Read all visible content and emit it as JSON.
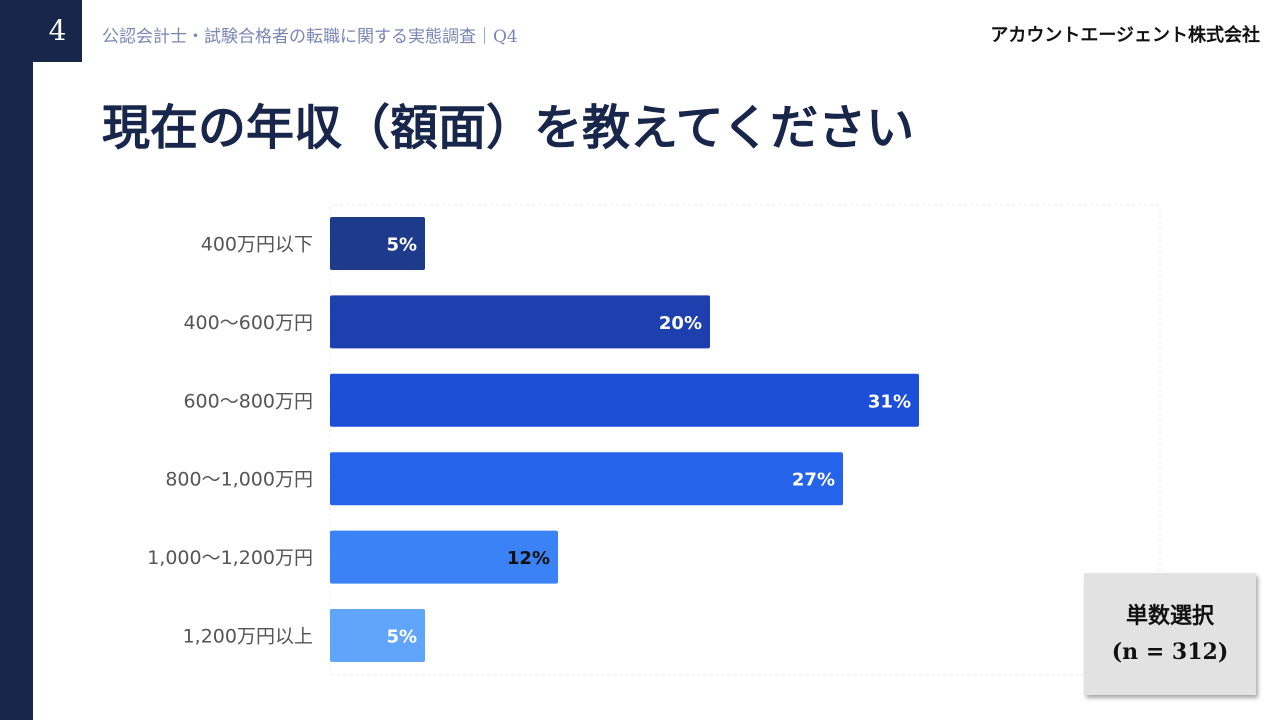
{
  "header": {
    "page_number": "4",
    "subtitle": "公認会計士・試験合格者の転職に関する実態調査｜Q4",
    "company": "アカウントエージェント株式会社"
  },
  "title": "現在の年収（額面）を教えてください",
  "note": {
    "line1": "単数選択",
    "line2": "(n = 312)"
  },
  "colors": {
    "navy": "#17264a",
    "bars": [
      "#1e3a8a",
      "#1e40af",
      "#1d4ed8",
      "#2563eb",
      "#3b82f6",
      "#60a5fa"
    ]
  },
  "chart_data": {
    "type": "bar",
    "orientation": "horizontal",
    "categories": [
      "400万円以下",
      "400〜600万円",
      "600〜800万円",
      "800〜1,000万円",
      "1,000〜1,200万円",
      "1,200万円以上"
    ],
    "values": [
      5,
      20,
      31,
      27,
      12,
      5
    ],
    "value_labels": [
      "5%",
      "20%",
      "31%",
      "27%",
      "12%",
      "5%"
    ],
    "unit": "%",
    "xlim": [
      0,
      40
    ],
    "grid": false
  }
}
